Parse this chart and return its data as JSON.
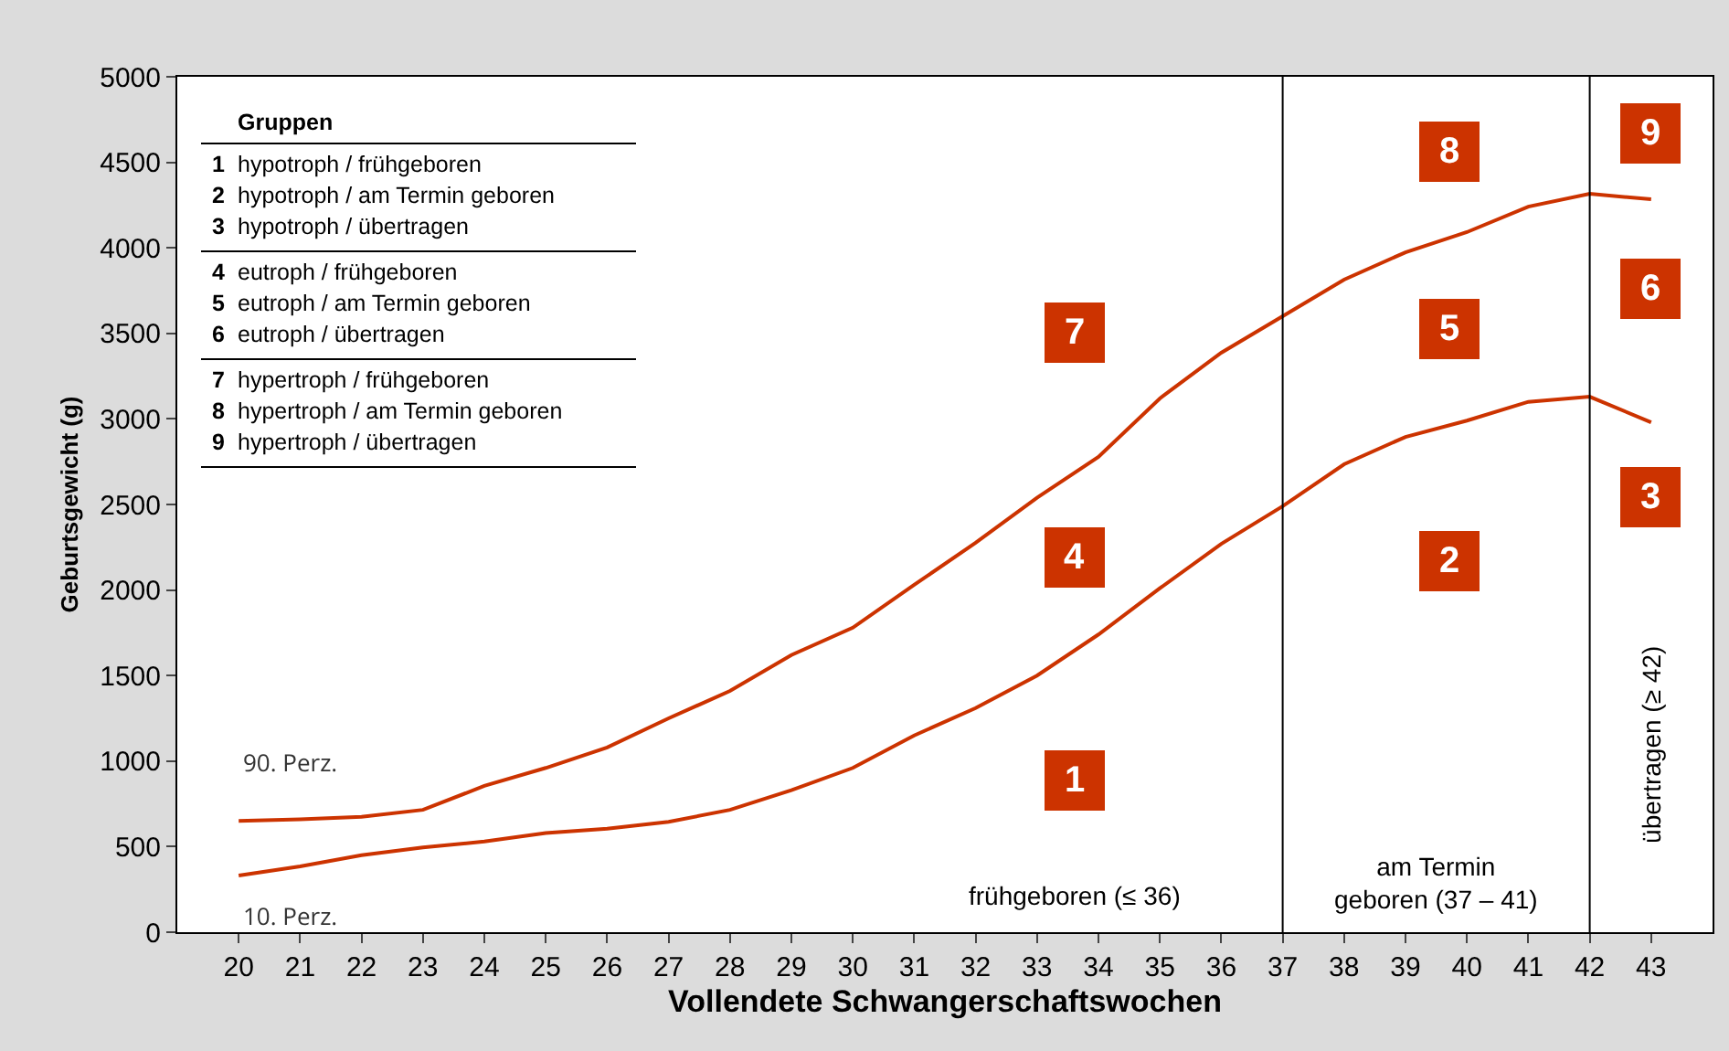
{
  "chart_data": {
    "type": "line",
    "xlabel": "Vollendete Schwangerschaftswochen",
    "ylabel": "Geburtsgewicht (g)",
    "x": [
      20,
      21,
      22,
      23,
      24,
      25,
      26,
      27,
      28,
      29,
      30,
      31,
      32,
      33,
      34,
      35,
      36,
      37,
      38,
      39,
      40,
      41,
      42,
      43
    ],
    "series": [
      {
        "name": "90. Perz.",
        "color": "#cc3300",
        "values": [
          650,
          660,
          675,
          715,
          855,
          960,
          1080,
          1250,
          1410,
          1620,
          1780,
          2030,
          2276,
          2540,
          2778,
          3120,
          3387,
          3600,
          3814,
          3974,
          4092,
          4241,
          4316,
          4284
        ]
      },
      {
        "name": "10. Perz.",
        "color": "#cc3300",
        "values": [
          331,
          385,
          450,
          495,
          530,
          580,
          605,
          645,
          715,
          830,
          960,
          1150,
          1310,
          1500,
          1740,
          2010,
          2270,
          2490,
          2735,
          2895,
          2990,
          3100,
          3130,
          2980
        ]
      }
    ],
    "xlim": [
      19,
      44
    ],
    "xticks": [
      20,
      21,
      22,
      23,
      24,
      25,
      26,
      27,
      28,
      29,
      30,
      31,
      32,
      33,
      34,
      35,
      36,
      37,
      38,
      39,
      40,
      41,
      42,
      43
    ],
    "ylim": [
      0,
      5000
    ],
    "yticks": [
      0,
      500,
      1000,
      1500,
      2000,
      2500,
      3000,
      3500,
      4000,
      4500,
      5000
    ],
    "grid": false,
    "legend": false,
    "marker": "none",
    "line_style": "solid",
    "ref_lines": [
      {
        "axis": "x",
        "value": 37,
        "color": "#000000"
      },
      {
        "axis": "x",
        "value": 42,
        "color": "#000000"
      }
    ],
    "annotations": [
      "Gruppen",
      "1 hypotroph / frühgeboren",
      "2 hypotroph / am Termin geboren",
      "3 hypotroph / übertragen",
      "4 eutroph / frühgeboren",
      "5 eutroph / am Termin geboren",
      "6 eutroph / übertragen",
      "7 hypertroph / frühgeboren",
      "8 hypertroph / am Termin geboren",
      "9 hypertroph / übertragen",
      "frühgeboren (≤ 36)",
      "am Termin geboren (37 – 41)",
      "übertragen (≥ 42)",
      {
        "text": "1",
        "x": 33.6,
        "y": 890
      },
      {
        "text": "2",
        "x": 39.7,
        "y": 2170
      },
      {
        "text": "3",
        "x": 43,
        "y": 2540
      },
      {
        "text": "4",
        "x": 33.6,
        "y": 2190
      },
      {
        "text": "5",
        "x": 39.7,
        "y": 3530
      },
      {
        "text": "6",
        "x": 43,
        "y": 3760
      },
      {
        "text": "7",
        "x": 33.6,
        "y": 3500
      },
      {
        "text": "8",
        "x": 39.7,
        "y": 4560
      },
      {
        "text": "9",
        "x": 43,
        "y": 4670
      }
    ]
  }
}
